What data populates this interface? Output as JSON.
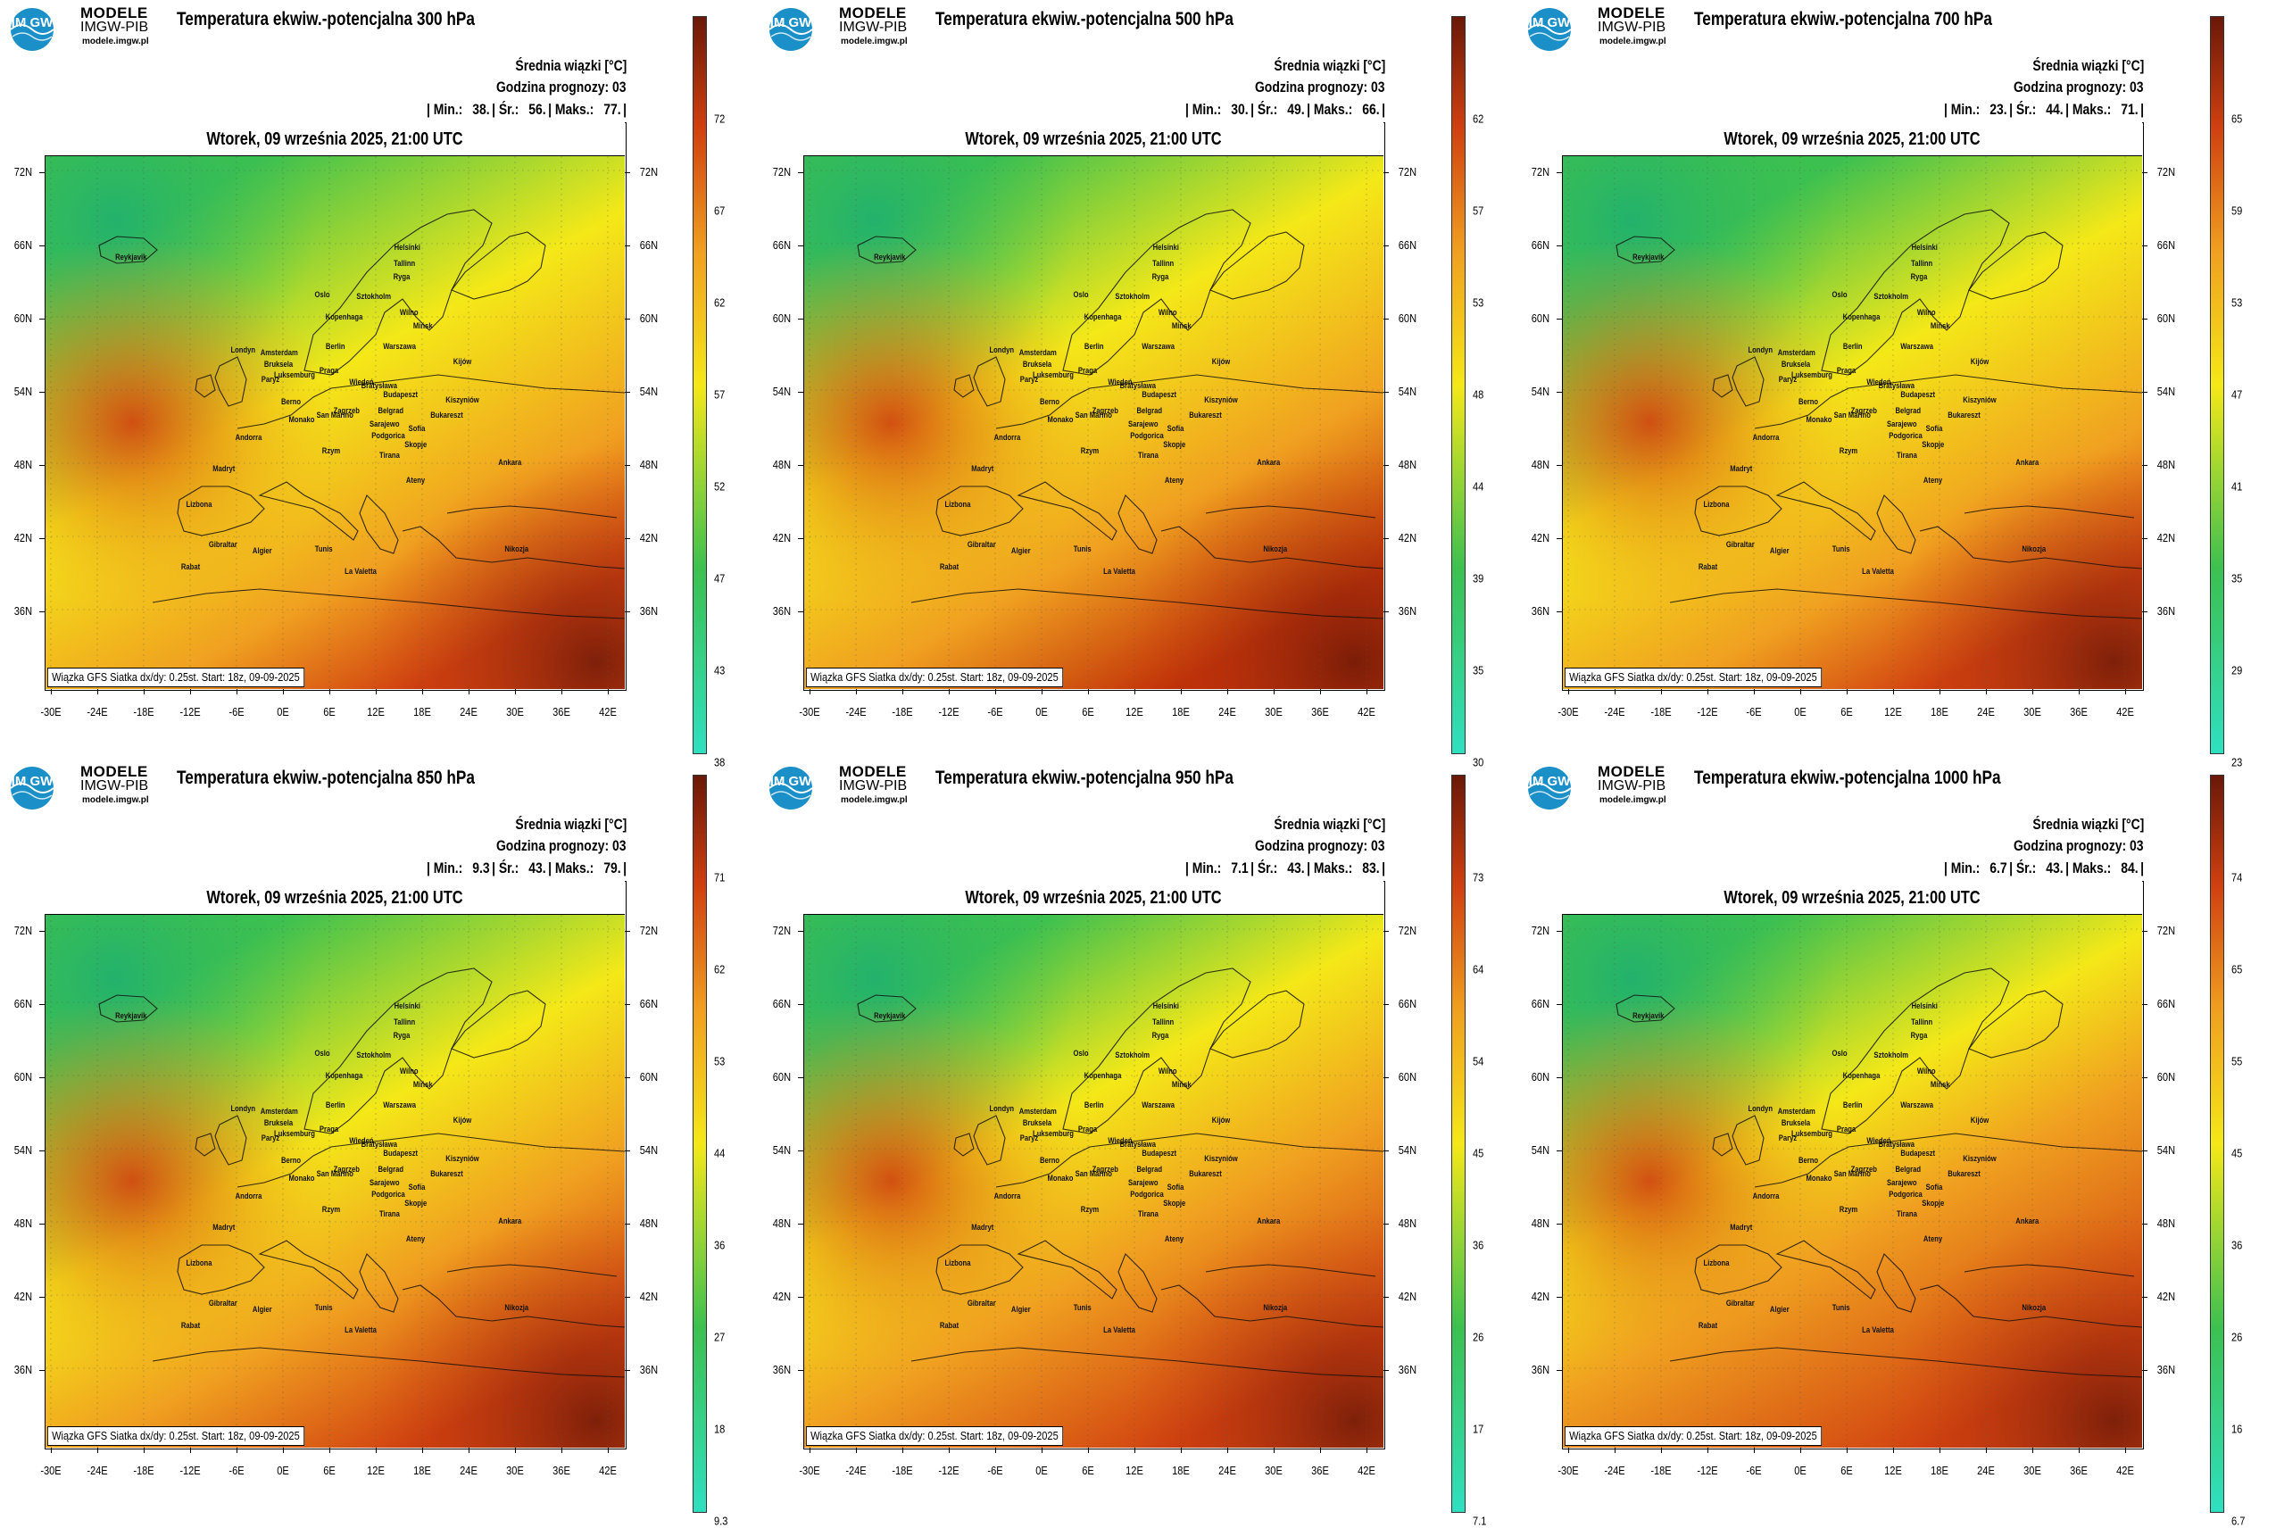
{
  "brand": {
    "name": "MODELE",
    "org": "IMGW-PIB",
    "url": "modele.imgw.pl",
    "logo_text": "IM GW"
  },
  "common": {
    "subtitle": "Średnia wiązki [°C]",
    "forecast_hour": "Godzina prognozy: 03",
    "date": "Wtorek, 09 września 2025, 21:00 UTC",
    "footer": "Wiązka GFS Siatka dx/dy: 0.25st. Start: 18z, 09-09-2025",
    "min_label": "| Min.:",
    "mean_label": "| Śr.:",
    "max_label": "| Maks.:",
    "end_bar": "|"
  },
  "axes": {
    "lat_labels": [
      "72N",
      "66N",
      "60N",
      "54N",
      "48N",
      "42N",
      "36N"
    ],
    "lon_labels": [
      "-30E",
      "-24E",
      "-18E",
      "-12E",
      "-6E",
      "0E",
      "6E",
      "12E",
      "18E",
      "24E",
      "30E",
      "36E",
      "42E"
    ]
  },
  "cities": [
    "Oslo",
    "Helsinki",
    "Sztokholm",
    "Tallinn",
    "Ryga",
    "Kopenhaga",
    "Wilno",
    "Mińsk",
    "Amsterdam",
    "Berlin",
    "Warszawa",
    "Londyn",
    "Bruksela",
    "Luksemburg",
    "Paryż",
    "Praga",
    "Kijów",
    "Wiedeń",
    "Bratysława",
    "Budapeszt",
    "Kiszyniów",
    "Berno",
    "Zagrzeb",
    "Belgrad",
    "Bukareszt",
    "Monako",
    "San Marino",
    "Sarajewo",
    "Podgorica",
    "Sofia",
    "Andorra",
    "Rzym",
    "Skopje",
    "Tirana",
    "Madryt",
    "Ateny",
    "Ankara",
    "Lizbona",
    "Gibraltar",
    "Algier",
    "Tunis",
    "La Valetta",
    "Nikozja",
    "Rabat",
    "Reykjavik"
  ],
  "panels": [
    {
      "title": "Temperatura ekwiw.-potencjalna 300 hPa",
      "min": "38.",
      "mean": "56.",
      "max": "77.",
      "colorbar_ticks": [
        "72",
        "67",
        "62",
        "57",
        "52",
        "47",
        "43",
        "38"
      ],
      "map_style": "p300"
    },
    {
      "title": "Temperatura ekwiw.-potencjalna 500 hPa",
      "min": "30.",
      "mean": "49.",
      "max": "66.",
      "colorbar_ticks": [
        "62",
        "57",
        "53",
        "48",
        "44",
        "39",
        "35",
        "30"
      ],
      "map_style": "p500"
    },
    {
      "title": "Temperatura ekwiw.-potencjalna 700 hPa",
      "min": "23.",
      "mean": "44.",
      "max": "71.",
      "colorbar_ticks": [
        "65",
        "59",
        "53",
        "47",
        "41",
        "35",
        "29",
        "23"
      ],
      "map_style": "p700"
    },
    {
      "title": "Temperatura ekwiw.-potencjalna 850 hPa",
      "min": "9.3",
      "mean": "43.",
      "max": "79.",
      "colorbar_ticks": [
        "71",
        "62",
        "53",
        "44",
        "36",
        "27",
        "18",
        "9.3"
      ],
      "map_style": "p850"
    },
    {
      "title": "Temperatura ekwiw.-potencjalna 950 hPa",
      "min": "7.1",
      "mean": "43.",
      "max": "83.",
      "colorbar_ticks": [
        "73",
        "64",
        "54",
        "45",
        "36",
        "26",
        "17",
        "7.1"
      ],
      "map_style": "p950"
    },
    {
      "title": "Temperatura ekwiw.-potencjalna 1000 hPa",
      "min": "6.7",
      "mean": "43.",
      "max": "84.",
      "colorbar_ticks": [
        "74",
        "65",
        "55",
        "45",
        "36",
        "26",
        "16",
        "6.7"
      ],
      "map_style": "p1000"
    }
  ],
  "colors": {
    "cold": "#2fe0c0",
    "green": "#3cc050",
    "yellow": "#f4e818",
    "orange": "#f0a020",
    "red": "#d04010",
    "dark": "#6a1808"
  }
}
